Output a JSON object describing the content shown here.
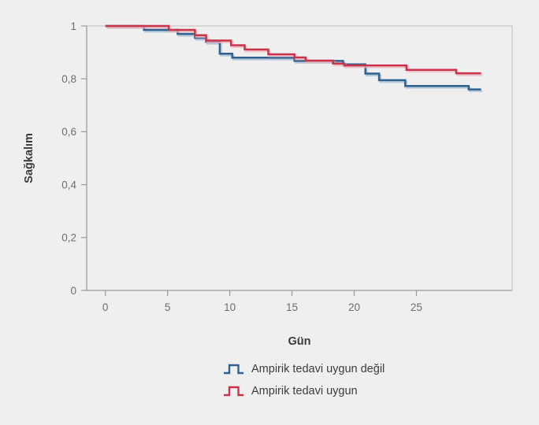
{
  "figure": {
    "title": "",
    "xlabel": "Gün",
    "ylabel": "Sağkalım"
  },
  "legend": {
    "items": [
      {
        "label": "Ampirik tedavi uygun değil",
        "color": "#31618e",
        "icon": "step-pulse-icon"
      },
      {
        "label": "Ampirik tedavi uygun",
        "color": "#c9344a",
        "icon": "step-pulse-icon"
      }
    ]
  },
  "theme": {
    "background": "#efeff0",
    "axis_color": "#9a9a9a",
    "border_color": "#c7c7c7",
    "tick_text_color": "#6e6e6e",
    "label_text_color": "#3a3a3a"
  },
  "chart_data": {
    "type": "line",
    "subtype": "kaplan-meier-step",
    "title": "",
    "xlabel": "Gün",
    "ylabel": "Sağkalım",
    "xlim": [
      -1.5,
      32.7
    ],
    "ylim": [
      0,
      1
    ],
    "grid": false,
    "legend_position": "bottom",
    "xticks": [
      0,
      5,
      10,
      15,
      20,
      25
    ],
    "yticks": [
      {
        "v": 0,
        "label": "0"
      },
      {
        "v": 0.2,
        "label": "0,2"
      },
      {
        "v": 0.4,
        "label": "0,4"
      },
      {
        "v": 0.6,
        "label": "0,6"
      },
      {
        "v": 0.8,
        "label": "0,8"
      },
      {
        "v": 1,
        "label": "1"
      }
    ],
    "series": [
      {
        "name": "Ampirik tedavi uygun değil",
        "color": "#31618e",
        "shadow_color": "#a5bfd6",
        "points": [
          [
            0,
            1
          ],
          [
            3.1,
            0.985
          ],
          [
            5.8,
            0.97
          ],
          [
            7.2,
            0.955
          ],
          [
            8.1,
            0.94
          ],
          [
            9.2,
            0.895
          ],
          [
            10.2,
            0.88
          ],
          [
            15.2,
            0.868
          ],
          [
            19.1,
            0.855
          ],
          [
            20.9,
            0.82
          ],
          [
            22.0,
            0.795
          ],
          [
            24.1,
            0.773
          ],
          [
            29.2,
            0.76
          ],
          [
            30.2,
            0.76
          ]
        ]
      },
      {
        "name": "Ampirik tedavi uygun",
        "color": "#c9344a",
        "shadow_color": "#ecb4bd",
        "points": [
          [
            0,
            1
          ],
          [
            5.1,
            0.985
          ],
          [
            7.2,
            0.965
          ],
          [
            8.1,
            0.945
          ],
          [
            10.1,
            0.927
          ],
          [
            11.2,
            0.911
          ],
          [
            13.1,
            0.893
          ],
          [
            15.2,
            0.881
          ],
          [
            16.1,
            0.869
          ],
          [
            18.3,
            0.858
          ],
          [
            19.2,
            0.851
          ],
          [
            24.2,
            0.834
          ],
          [
            28.2,
            0.821
          ],
          [
            30.2,
            0.821
          ]
        ]
      }
    ]
  }
}
